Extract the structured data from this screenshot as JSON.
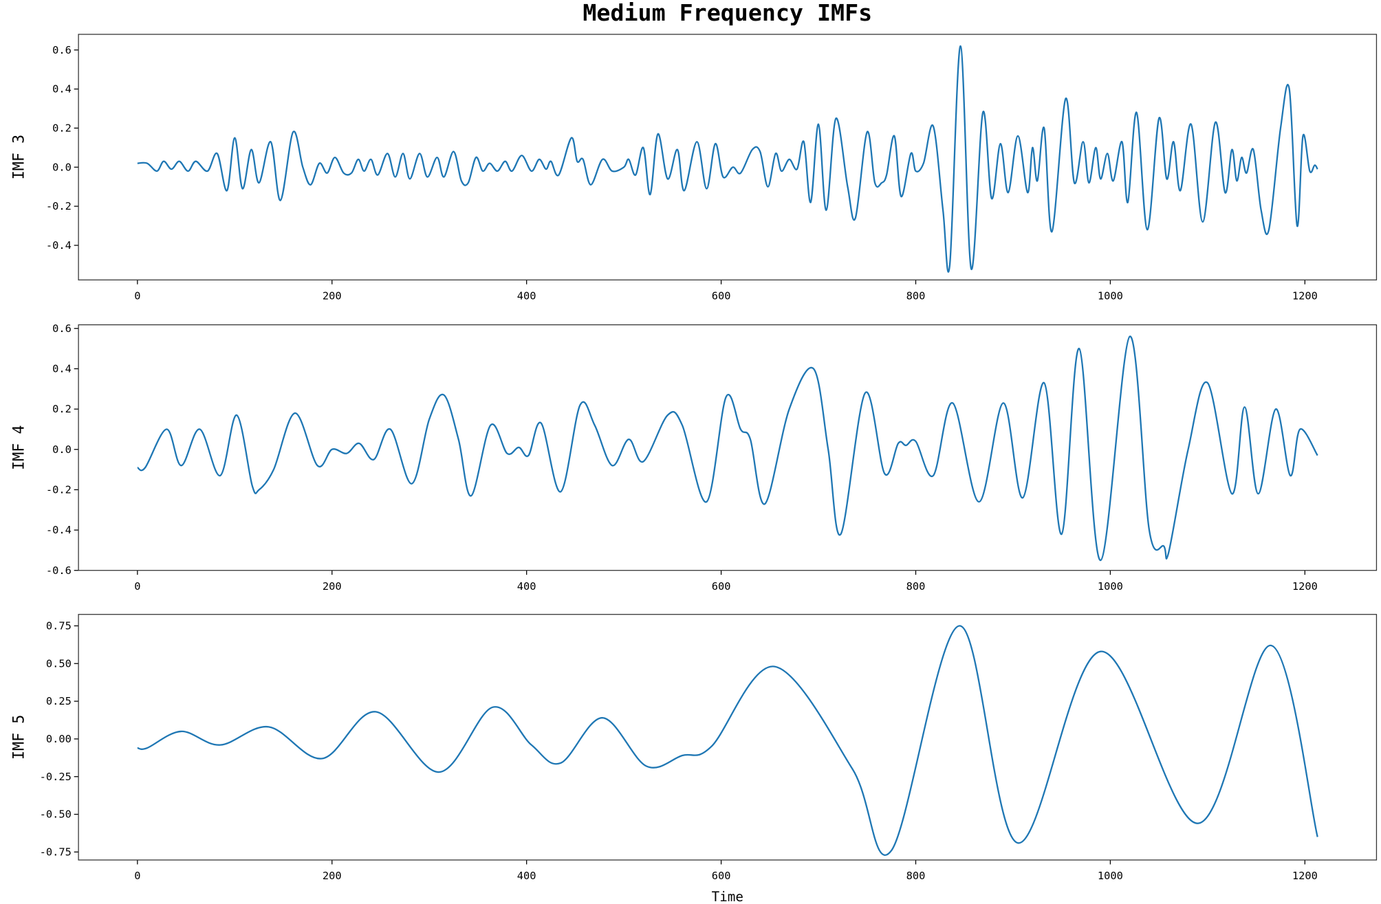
{
  "title": "Medium Frequency IMFs",
  "chart_data": [
    {
      "type": "line",
      "ylabel": "IMF 3",
      "xlim": [
        -60.6,
        1273.6
      ],
      "ylim": [
        -0.577,
        0.68
      ],
      "xticks": [
        0,
        200,
        400,
        600,
        800,
        1000,
        1200
      ],
      "yticks": [
        -0.4,
        -0.2,
        {
          "value": 0,
          "label": "0.0"
        },
        0.2,
        0.4,
        0.6
      ],
      "series": [
        {
          "color": "#1f77b4",
          "x": [
            0,
            10,
            20,
            27,
            35,
            43,
            52,
            60,
            72,
            82,
            92,
            100,
            108,
            117,
            125,
            137,
            147,
            160,
            170,
            178,
            187,
            195,
            203,
            212,
            220,
            227,
            233,
            240,
            247,
            257,
            265,
            273,
            280,
            290,
            298,
            308,
            315,
            325,
            333,
            340,
            348,
            355,
            362,
            370,
            378,
            385,
            395,
            405,
            413,
            420,
            425,
            433,
            446,
            452,
            458,
            466,
            478,
            488,
            500,
            505,
            512,
            520,
            527,
            535,
            545,
            555,
            562,
            575,
            585,
            594,
            602,
            612,
            620,
            632,
            640,
            648,
            656,
            662,
            670,
            678,
            685,
            692,
            700,
            708,
            718,
            730,
            738,
            750,
            758,
            765,
            770,
            778,
            785,
            795,
            800,
            808,
            818,
            828,
            835,
            846,
            857,
            869,
            878,
            887,
            895,
            905,
            915,
            920,
            925,
            932,
            940,
            954,
            963,
            972,
            978,
            985,
            990,
            997,
            1003,
            1012,
            1018,
            1027,
            1038,
            1050,
            1058,
            1065,
            1072,
            1083,
            1095,
            1108,
            1118,
            1125,
            1130,
            1135,
            1140,
            1147,
            1155,
            1163,
            1175,
            1184,
            1192,
            1198,
            1205,
            1210,
            1213
          ],
          "values": [
            0.02,
            0.02,
            -0.02,
            0.03,
            -0.01,
            0.03,
            -0.02,
            0.03,
            -0.02,
            0.07,
            -0.12,
            0.15,
            -0.11,
            0.09,
            -0.08,
            0.13,
            -0.17,
            0.18,
            0.0,
            -0.09,
            0.02,
            -0.03,
            0.05,
            -0.03,
            -0.03,
            0.04,
            -0.02,
            0.04,
            -0.04,
            0.07,
            -0.05,
            0.07,
            -0.06,
            0.07,
            -0.05,
            0.05,
            -0.05,
            0.08,
            -0.07,
            -0.08,
            0.05,
            -0.02,
            0.02,
            -0.02,
            0.03,
            -0.02,
            0.06,
            -0.02,
            0.04,
            -0.01,
            0.03,
            -0.04,
            0.15,
            0.03,
            0.04,
            -0.09,
            0.04,
            -0.02,
            0.0,
            0.04,
            -0.04,
            0.1,
            -0.14,
            0.17,
            -0.06,
            0.09,
            -0.12,
            0.13,
            -0.11,
            0.12,
            -0.05,
            0.0,
            -0.03,
            0.09,
            0.08,
            -0.1,
            0.07,
            -0.02,
            0.04,
            -0.01,
            0.13,
            -0.18,
            0.22,
            -0.22,
            0.25,
            -0.1,
            -0.26,
            0.18,
            -0.08,
            -0.08,
            -0.04,
            0.16,
            -0.15,
            0.07,
            -0.02,
            0.02,
            0.21,
            -0.22,
            -0.5,
            0.62,
            -0.52,
            0.28,
            -0.16,
            0.12,
            -0.13,
            0.16,
            -0.13,
            0.1,
            -0.07,
            0.2,
            -0.33,
            0.35,
            -0.08,
            0.13,
            -0.08,
            0.1,
            -0.06,
            0.07,
            -0.07,
            0.13,
            -0.18,
            0.28,
            -0.32,
            0.25,
            -0.06,
            0.13,
            -0.12,
            0.22,
            -0.28,
            0.23,
            -0.13,
            0.09,
            -0.07,
            0.05,
            -0.03,
            0.09,
            -0.22,
            -0.32,
            0.2,
            0.4,
            -0.3,
            0.16,
            -0.02,
            0.01,
            -0.01
          ]
        }
      ]
    },
    {
      "type": "line",
      "ylabel": "IMF 4",
      "xlim": [
        -60.6,
        1273.6
      ],
      "ylim": [
        -0.6,
        0.618
      ],
      "xticks": [
        0,
        200,
        400,
        600,
        800,
        1000,
        1200
      ],
      "yticks": [
        -0.6,
        -0.4,
        -0.2,
        {
          "value": 0,
          "label": "0.0"
        },
        0.2,
        0.4,
        0.6
      ],
      "series": [
        {
          "color": "#1f77b4",
          "x": [
            0,
            8,
            30,
            45,
            64,
            85,
            102,
            118,
            125,
            140,
            162,
            185,
            200,
            215,
            228,
            243,
            260,
            282,
            300,
            315,
            330,
            343,
            363,
            380,
            392,
            402,
            415,
            435,
            455,
            470,
            488,
            505,
            520,
            545,
            560,
            585,
            605,
            620,
            630,
            645,
            670,
            695,
            710,
            723,
            748,
            768,
            782,
            790,
            800,
            818,
            838,
            865,
            890,
            910,
            932,
            950,
            968,
            990,
            1020,
            1040,
            1055,
            1060,
            1080,
            1100,
            1125,
            1138,
            1152,
            1170,
            1185,
            1195,
            1213
          ],
          "values": [
            -0.09,
            -0.09,
            0.1,
            -0.08,
            0.1,
            -0.13,
            0.17,
            -0.18,
            -0.2,
            -0.1,
            0.18,
            -0.08,
            0.0,
            -0.02,
            0.03,
            -0.05,
            0.1,
            -0.17,
            0.15,
            0.27,
            0.05,
            -0.23,
            0.12,
            -0.02,
            0.01,
            -0.03,
            0.13,
            -0.21,
            0.22,
            0.12,
            -0.08,
            0.05,
            -0.06,
            0.17,
            0.12,
            -0.26,
            0.26,
            0.1,
            0.05,
            -0.27,
            0.2,
            0.4,
            0.0,
            -0.42,
            0.28,
            -0.12,
            0.03,
            0.02,
            0.04,
            -0.13,
            0.23,
            -0.26,
            0.23,
            -0.24,
            0.33,
            -0.42,
            0.5,
            -0.55,
            0.56,
            -0.4,
            -0.48,
            -0.51,
            0.0,
            0.33,
            -0.22,
            0.21,
            -0.22,
            0.2,
            -0.13,
            0.1,
            -0.03
          ]
        }
      ]
    },
    {
      "type": "line",
      "ylabel": "IMF 5",
      "xlabel": "Time",
      "xlim": [
        -60.6,
        1273.6
      ],
      "ylim": [
        -0.803,
        0.826
      ],
      "xticks": [
        0,
        200,
        400,
        600,
        800,
        1000,
        1200
      ],
      "yticks": [
        {
          "value": -0.75,
          "label": "-0.75"
        },
        {
          "value": -0.5,
          "label": "-0.50"
        },
        -0.25,
        {
          "value": 0,
          "label": "0.00"
        },
        0.25,
        {
          "value": 0.5,
          "label": "0.50"
        },
        0.75
      ],
      "series": [
        {
          "color": "#1f77b4",
          "x": [
            0,
            10,
            45,
            85,
            135,
            190,
            245,
            310,
            365,
            405,
            435,
            478,
            523,
            560,
            590,
            655,
            735,
            775,
            845,
            905,
            990,
            1090,
            1165,
            1213
          ],
          "values": [
            -0.06,
            -0.06,
            0.05,
            -0.04,
            0.08,
            -0.13,
            0.18,
            -0.22,
            0.21,
            -0.04,
            -0.16,
            0.14,
            -0.18,
            -0.11,
            -0.05,
            0.48,
            -0.2,
            -0.74,
            0.75,
            -0.69,
            0.58,
            -0.56,
            0.62,
            -0.65
          ]
        }
      ]
    }
  ]
}
